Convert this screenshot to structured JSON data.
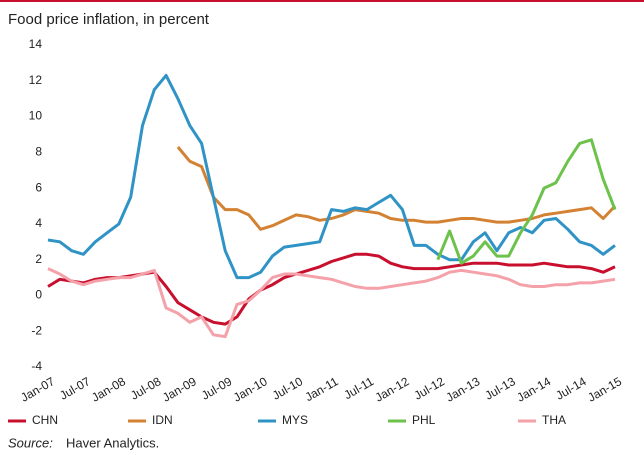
{
  "chart_data": {
    "type": "line",
    "title": "Food price inflation, in percent",
    "categories": [
      "Jan-07",
      null,
      null,
      "Jul-07",
      null,
      null,
      "Jan-08",
      null,
      null,
      "Jul-08",
      null,
      null,
      "Jan-09",
      null,
      null,
      "Jul-09",
      null,
      null,
      "Jan-10",
      null,
      null,
      "Jul-10",
      null,
      null,
      "Jan-11",
      null,
      null,
      "Jul-11",
      null,
      null,
      "Jan-12",
      null,
      null,
      "Jul-12",
      null,
      null,
      "Jan-13",
      null,
      null,
      "Jul-13",
      null,
      null,
      "Jan-14",
      null,
      null,
      "Jul-14",
      null,
      null,
      "Jan-15"
    ],
    "series": [
      {
        "name": "CHN",
        "color": "#c8102e",
        "values": [
          0.5,
          0.9,
          0.8,
          0.7,
          0.9,
          1.0,
          1.0,
          1.1,
          1.2,
          1.3,
          0.5,
          -0.4,
          -0.8,
          -1.2,
          -1.5,
          -1.6,
          -1.2,
          -0.2,
          0.3,
          0.6,
          1.0,
          1.2,
          1.4,
          1.6,
          1.9,
          2.1,
          2.3,
          2.3,
          2.2,
          1.8,
          1.6,
          1.5,
          1.5,
          1.5,
          1.6,
          1.7,
          1.8,
          1.8,
          1.8,
          1.7,
          1.7,
          1.7,
          1.8,
          1.7,
          1.6,
          1.6,
          1.5,
          1.3,
          1.6
        ]
      },
      {
        "name": "IDN",
        "color": "#d38132",
        "values": [
          null,
          null,
          null,
          null,
          null,
          null,
          null,
          null,
          null,
          null,
          null,
          8.3,
          7.5,
          7.2,
          5.5,
          4.8,
          4.8,
          4.5,
          3.7,
          3.9,
          4.2,
          4.5,
          4.4,
          4.2,
          4.3,
          4.5,
          4.8,
          4.7,
          4.6,
          4.3,
          4.2,
          4.2,
          4.1,
          4.1,
          4.2,
          4.3,
          4.3,
          4.2,
          4.1,
          4.1,
          4.2,
          4.3,
          4.5,
          4.6,
          4.7,
          4.8,
          4.9,
          4.3,
          5.0
        ]
      },
      {
        "name": "MYS",
        "color": "#2f93c6",
        "values": [
          3.1,
          3.0,
          2.5,
          2.3,
          3.0,
          3.5,
          4.0,
          5.5,
          9.5,
          11.5,
          12.3,
          11,
          9.5,
          8.5,
          5.5,
          2.5,
          1.0,
          1.0,
          1.3,
          2.2,
          2.7,
          2.8,
          2.9,
          3.0,
          4.8,
          4.7,
          4.9,
          4.8,
          5.2,
          5.6,
          4.8,
          2.8,
          2.8,
          2.3,
          2.0,
          2.0,
          3.0,
          3.5,
          2.5,
          3.5,
          3.8,
          3.5,
          4.2,
          4.3,
          3.7,
          3.0,
          2.8,
          2.3,
          2.8
        ]
      },
      {
        "name": "PHL",
        "color": "#6cc24a",
        "values": [
          null,
          null,
          null,
          null,
          null,
          null,
          null,
          null,
          null,
          null,
          null,
          null,
          null,
          null,
          null,
          null,
          null,
          null,
          null,
          null,
          null,
          null,
          null,
          null,
          null,
          null,
          null,
          null,
          null,
          null,
          null,
          null,
          null,
          2.0,
          3.6,
          1.8,
          2.2,
          3.0,
          2.2,
          2.2,
          3.5,
          4.5,
          6.0,
          6.3,
          7.5,
          8.5,
          8.7,
          6.5,
          4.8
        ]
      },
      {
        "name": "THA",
        "color": "#f4a1aa",
        "values": [
          1.5,
          1.2,
          0.8,
          0.6,
          0.8,
          0.9,
          1.0,
          1.0,
          1.2,
          1.4,
          -0.7,
          -1.0,
          -1.5,
          -1.2,
          -2.2,
          -2.3,
          -0.5,
          -0.3,
          0.3,
          1.0,
          1.2,
          1.2,
          1.1,
          1.0,
          0.9,
          0.7,
          0.5,
          0.4,
          0.4,
          0.5,
          0.6,
          0.7,
          0.8,
          1.0,
          1.3,
          1.4,
          1.3,
          1.2,
          1.1,
          0.9,
          0.6,
          0.5,
          0.5,
          0.6,
          0.6,
          0.7,
          0.7,
          0.8,
          0.9
        ]
      }
    ],
    "ylim": [
      -4,
      14
    ],
    "yticks": [
      -4,
      -2,
      0,
      2,
      4,
      6,
      8,
      10,
      12,
      14
    ],
    "grid": false,
    "source_label": "Source:",
    "source": "Haver Analytics."
  }
}
